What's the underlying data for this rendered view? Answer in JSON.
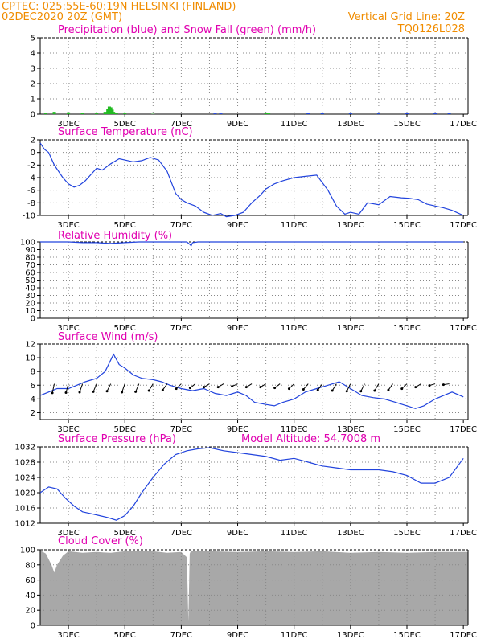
{
  "header": {
    "line1_left": "CPTEC:   025:55E-60:19N   HELSINKI (FINLAND)",
    "line2_left": "02DEC2020 20Z (GMT)",
    "line1_right": "Vertical Grid Line: 20Z",
    "line2_right": "TQ0126L028",
    "color": "#f08c00"
  },
  "colors": {
    "panel_title": "#e000b0",
    "line": "#2244dd",
    "snow": "#22bb22",
    "cloud_fill": "#a8a8a8",
    "arrow": "#000000"
  },
  "x_axis": {
    "start": "02DEC 20Z",
    "end": "17DEC 00Z",
    "tick_labels": [
      "3DEC",
      "5DEC",
      "7DEC",
      "9DEC",
      "11DEC",
      "13DEC",
      "15DEC",
      "17DEC"
    ],
    "tick_days": [
      1,
      3,
      5,
      7,
      9,
      11,
      13,
      15
    ]
  },
  "chart_data": [
    {
      "id": "precip",
      "type": "bar",
      "title": "Precipitation (blue) and Snow Fall (green) (mm/h)",
      "ylim": [
        0,
        5
      ],
      "yticks": [
        0,
        1,
        2,
        3,
        4,
        5
      ],
      "grid": true,
      "x_days": [
        0.2,
        0.5,
        1.0,
        1.5,
        2.0,
        2.3,
        2.4,
        2.45,
        2.5,
        2.55,
        2.6,
        2.7,
        3.0,
        4.0,
        6.2,
        6.4,
        8.0,
        8.1,
        9.5,
        10.0,
        11.0,
        12.0,
        13.0,
        14.0,
        14.5
      ],
      "snow": [
        0.1,
        0.15,
        0.12,
        0.1,
        0.1,
        0.15,
        0.35,
        0.5,
        0.45,
        0.3,
        0.15,
        0.08,
        0.05,
        0.02,
        0.0,
        0.0,
        0.1,
        0.05,
        0.05,
        0.05,
        0.05,
        0.05,
        0.05,
        0.05,
        0.05
      ],
      "rain": [
        0.0,
        0.0,
        0.0,
        0.0,
        0.0,
        0.0,
        0.0,
        0.0,
        0.0,
        0.0,
        0.0,
        0.0,
        0.0,
        0.0,
        0.05,
        0.05,
        0.0,
        0.0,
        0.08,
        0.08,
        0.08,
        0.05,
        0.08,
        0.1,
        0.1
      ]
    },
    {
      "id": "temperature",
      "type": "line",
      "title": "Surface Temperature (nC)",
      "ylim": [
        -10,
        2
      ],
      "yticks": [
        -10,
        -8,
        -6,
        -4,
        -2,
        0,
        2
      ],
      "grid": true,
      "x": [
        0.0,
        0.15,
        0.3,
        0.5,
        0.8,
        1.0,
        1.2,
        1.4,
        1.6,
        1.8,
        2.0,
        2.2,
        2.5,
        2.8,
        3.0,
        3.3,
        3.6,
        3.9,
        4.2,
        4.5,
        4.8,
        5.0,
        5.2,
        5.5,
        5.8,
        6.1,
        6.4,
        6.6,
        6.9,
        7.2,
        7.5,
        7.8,
        8.0,
        8.3,
        8.6,
        9.0,
        9.4,
        9.8,
        10.2,
        10.5,
        10.8,
        11.0,
        11.3,
        11.6,
        12.0,
        12.4,
        12.8,
        13.1,
        13.4,
        13.7,
        14.0,
        14.3,
        14.6,
        14.9,
        15.0
      ],
      "y": [
        1.5,
        0.5,
        0.0,
        -2.0,
        -4.0,
        -5.0,
        -5.5,
        -5.2,
        -4.5,
        -3.5,
        -2.5,
        -2.8,
        -1.8,
        -1.0,
        -1.2,
        -1.5,
        -1.3,
        -0.8,
        -1.2,
        -3.0,
        -6.5,
        -7.5,
        -8.0,
        -8.5,
        -9.5,
        -10.0,
        -9.7,
        -10.2,
        -10.0,
        -9.5,
        -8.0,
        -6.8,
        -5.8,
        -5.0,
        -4.5,
        -4.0,
        -3.8,
        -3.6,
        -6.0,
        -8.5,
        -9.8,
        -9.5,
        -9.8,
        -8.0,
        -8.3,
        -7.0,
        -7.2,
        -7.3,
        -7.5,
        -8.2,
        -8.5,
        -8.8,
        -9.2,
        -9.8,
        -10.0
      ]
    },
    {
      "id": "humidity",
      "type": "line",
      "title": "Relative Humidity (%)",
      "ylim": [
        0,
        100
      ],
      "yticks": [
        0,
        10,
        20,
        30,
        40,
        50,
        60,
        70,
        80,
        90,
        100
      ],
      "grid": true,
      "x": [
        0.0,
        0.5,
        1.0,
        1.5,
        2.0,
        2.5,
        3.0,
        3.5,
        4.0,
        4.5,
        5.0,
        5.2,
        5.3,
        5.35,
        5.4,
        5.6,
        6.0,
        7.0,
        8.0,
        9.0,
        10.0,
        11.0,
        12.0,
        13.0,
        14.0,
        15.0
      ],
      "y": [
        100,
        100,
        100,
        99,
        99,
        98,
        99,
        100,
        100,
        100,
        100,
        100,
        97,
        95,
        99,
        100,
        100,
        100,
        100,
        100,
        100,
        100,
        100,
        100,
        100,
        100
      ]
    },
    {
      "id": "wind",
      "type": "line",
      "title": "Surface Wind (m/s)",
      "ylim": [
        1,
        12
      ],
      "yticks": [
        2,
        4,
        6,
        8,
        10,
        12
      ],
      "grid": true,
      "x": [
        0.0,
        0.3,
        0.6,
        1.0,
        1.3,
        1.6,
        2.0,
        2.3,
        2.6,
        2.8,
        3.0,
        3.3,
        3.6,
        4.0,
        4.3,
        4.6,
        5.0,
        5.4,
        5.8,
        6.2,
        6.6,
        7.0,
        7.3,
        7.6,
        8.0,
        8.3,
        8.6,
        9.0,
        9.4,
        9.8,
        10.2,
        10.6,
        11.0,
        11.4,
        11.8,
        12.2,
        12.6,
        13.0,
        13.3,
        13.6,
        14.0,
        14.3,
        14.6,
        15.0
      ],
      "y": [
        4.5,
        5.0,
        5.5,
        5.5,
        6.0,
        6.5,
        7.0,
        8.0,
        10.5,
        9.0,
        8.5,
        7.5,
        7.0,
        6.8,
        6.5,
        6.0,
        5.5,
        5.2,
        5.5,
        4.8,
        4.5,
        5.0,
        4.5,
        3.5,
        3.2,
        3.0,
        3.5,
        4.0,
        5.0,
        5.5,
        6.0,
        6.5,
        5.5,
        4.5,
        4.2,
        4.0,
        3.5,
        3.0,
        2.6,
        3.0,
        4.0,
        4.5,
        5.0,
        4.3
      ],
      "arrows_days": [
        0.5,
        1.0,
        1.5,
        2.0,
        2.5,
        3.0,
        3.5,
        4.0,
        4.5,
        5.0,
        5.5,
        6.0,
        6.5,
        7.0,
        7.5,
        8.0,
        8.5,
        9.0,
        9.5,
        10.0,
        10.5,
        11.0,
        11.5,
        12.0,
        12.5,
        13.0,
        13.5,
        14.0,
        14.5
      ],
      "arrows_dir_deg": [
        200,
        205,
        210,
        215,
        220,
        210,
        215,
        225,
        230,
        240,
        245,
        250,
        250,
        255,
        250,
        250,
        245,
        240,
        235,
        230,
        225,
        220,
        220,
        225,
        230,
        240,
        250,
        260,
        265
      ]
    },
    {
      "id": "pressure",
      "type": "line",
      "title": "Surface Pressure (hPa)",
      "annotation": "Model Altitude: 54.7008 m",
      "ylim": [
        1012,
        1032
      ],
      "yticks": [
        1012,
        1016,
        1020,
        1024,
        1028,
        1032
      ],
      "grid": true,
      "x": [
        0.0,
        0.3,
        0.6,
        0.9,
        1.2,
        1.5,
        1.8,
        2.1,
        2.4,
        2.7,
        3.0,
        3.3,
        3.6,
        4.0,
        4.4,
        4.8,
        5.2,
        5.6,
        6.0,
        6.5,
        7.0,
        7.5,
        8.0,
        8.5,
        9.0,
        9.5,
        10.0,
        10.5,
        11.0,
        11.5,
        12.0,
        12.5,
        13.0,
        13.5,
        14.0,
        14.5,
        15.0
      ],
      "y": [
        1020.0,
        1021.5,
        1021.0,
        1018.5,
        1016.5,
        1015.0,
        1014.5,
        1014.0,
        1013.5,
        1012.8,
        1014.0,
        1016.5,
        1020.0,
        1024.0,
        1027.5,
        1030.0,
        1031.0,
        1031.5,
        1031.8,
        1031.0,
        1030.5,
        1030.0,
        1029.5,
        1028.5,
        1029.0,
        1028.0,
        1027.0,
        1026.5,
        1026.0,
        1026.0,
        1026.0,
        1025.5,
        1024.5,
        1022.5,
        1022.5,
        1024.0,
        1029.0
      ]
    },
    {
      "id": "cloud",
      "type": "area",
      "title": "Cloud Cover (%)",
      "ylim": [
        0,
        100
      ],
      "yticks": [
        0,
        20,
        40,
        60,
        80,
        100
      ],
      "grid": true,
      "x": [
        0.0,
        0.2,
        0.4,
        0.5,
        0.6,
        0.8,
        1.0,
        1.5,
        2.0,
        2.5,
        3.0,
        4.0,
        4.5,
        5.0,
        5.2,
        5.25,
        5.3,
        5.35,
        5.5,
        6.0,
        7.0,
        8.0,
        9.0,
        10.0,
        11.0,
        12.0,
        13.0,
        14.0,
        15.0
      ],
      "y": [
        99,
        95,
        80,
        70,
        80,
        92,
        98,
        96,
        97,
        96,
        98,
        98,
        96,
        97,
        90,
        5,
        95,
        99,
        98,
        98,
        97,
        98,
        97,
        98,
        96,
        97,
        96,
        97,
        97
      ]
    }
  ]
}
